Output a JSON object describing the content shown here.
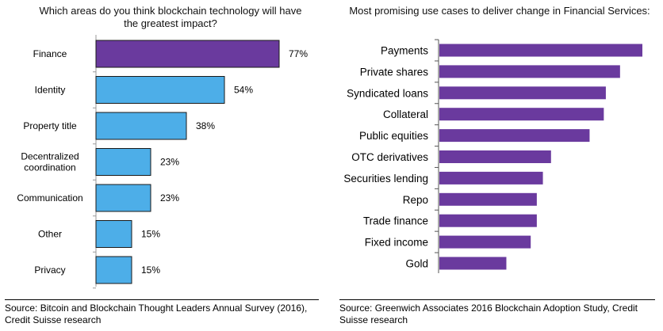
{
  "left": {
    "title": "Which areas do you think blockchain technology will have the greatest impact?",
    "source": "Source: Bitcoin and Blockchain Thought Leaders Annual Survey (2016), Credit Suisse research"
  },
  "right": {
    "title": "Most promising use cases to deliver change in Financial Services:",
    "source": "Source: Greenwich Associates 2016 Blockchain Adoption Study, Credit Suisse research"
  },
  "chart_data": [
    {
      "type": "bar",
      "orientation": "horizontal",
      "title": "Which areas do you think blockchain technology will have the greatest impact?",
      "categories": [
        "Finance",
        "Identity",
        "Property title",
        "Decentralized coordination",
        "Communication",
        "Other",
        "Privacy"
      ],
      "category_lines": [
        [
          "Finance"
        ],
        [
          "Identity"
        ],
        [
          "Property title"
        ],
        [
          "Decentralized",
          "coordination"
        ],
        [
          "Communication"
        ],
        [
          "Other"
        ],
        [
          "Privacy"
        ]
      ],
      "values": [
        77,
        54,
        38,
        23,
        23,
        15,
        15
      ],
      "value_labels": [
        "77%",
        "54%",
        "38%",
        "23%",
        "23%",
        "15%",
        "15%"
      ],
      "xlim": [
        0,
        100
      ],
      "grid": false,
      "colors": {
        "highlight": "#6a3a9e",
        "default": "#4daee8",
        "edge": "#1a1a1a",
        "axis": "#999999"
      }
    },
    {
      "type": "bar",
      "orientation": "horizontal",
      "title": "Most promising use cases to deliver change in Financial Services:",
      "categories": [
        "Payments",
        "Private shares",
        "Syndicated loans",
        "Collateral",
        "Public equities",
        "OTC derivatives",
        "Securities lending",
        "Repo",
        "Trade finance",
        "Fixed income",
        "Gold"
      ],
      "values": [
        100,
        89,
        82,
        81,
        74,
        55,
        51,
        48,
        48,
        45,
        33
      ],
      "value_unit": "relative (no scale shown)",
      "grid": false,
      "colors": {
        "bar": "#6a3a9e",
        "axis": "#555555"
      }
    }
  ]
}
